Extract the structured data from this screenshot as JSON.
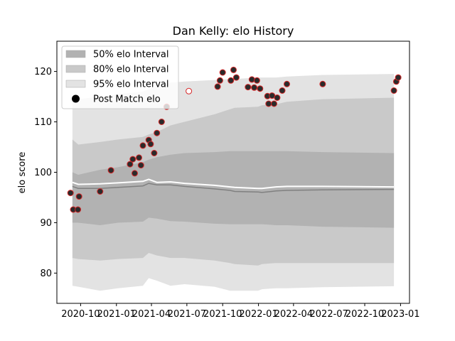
{
  "chart_data": {
    "type": "line",
    "title": "Dan Kelly: elo History",
    "xlabel": "",
    "ylabel": "elo score",
    "xlim": [
      "2020-08-01",
      "2023-01-24"
    ],
    "ylim": [
      74,
      126
    ],
    "x_ticks": [
      {
        "date": "2020-10-01",
        "label": "2020-10"
      },
      {
        "date": "2021-01-01",
        "label": "2021-01"
      },
      {
        "date": "2021-04-01",
        "label": "2021-04"
      },
      {
        "date": "2021-07-01",
        "label": "2021-07"
      },
      {
        "date": "2021-10-01",
        "label": "2021-10"
      },
      {
        "date": "2022-01-01",
        "label": "2022-01"
      },
      {
        "date": "2022-04-01",
        "label": "2022-04"
      },
      {
        "date": "2022-07-01",
        "label": "2022-07"
      },
      {
        "date": "2022-10-01",
        "label": "2022-10"
      },
      {
        "date": "2023-01-01",
        "label": "2023-01"
      }
    ],
    "y_ticks": [
      80,
      90,
      100,
      110,
      120
    ],
    "legend": {
      "placement": "upper left",
      "entries": [
        {
          "label": "50% elo Interval",
          "kind": "band",
          "color": "#b2b2b2"
        },
        {
          "label": "80% elo Interval",
          "kind": "band",
          "color": "#c9c9c9"
        },
        {
          "label": "95% elo Interval",
          "kind": "band",
          "color": "#e3e3e3"
        },
        {
          "label": "Post Match elo",
          "kind": "marker",
          "color": "#000000"
        }
      ]
    },
    "band_dates": [
      "2020-09-10",
      "2020-09-25",
      "2020-11-20",
      "2021-01-05",
      "2021-03-10",
      "2021-03-25",
      "2021-04-15",
      "2021-05-20",
      "2021-06-25",
      "2021-09-10",
      "2021-10-20",
      "2021-11-01",
      "2021-12-31",
      "2022-01-10",
      "2022-02-15",
      "2022-03-15",
      "2022-06-15",
      "2022-12-15"
    ],
    "intervals": {
      "p95": {
        "upper": [
          114,
          114.5,
          115,
          115.5,
          116,
          116.5,
          117,
          117.8,
          118,
          118.3,
          118.5,
          118.5,
          118.8,
          118.8,
          118.8,
          119,
          119.3,
          119.5
        ],
        "lower": [
          77.5,
          77.3,
          76.5,
          77,
          77.5,
          79,
          78.5,
          77.5,
          77.8,
          77.3,
          76.5,
          76.5,
          76.5,
          76.8,
          77,
          77,
          77.2,
          77.4
        ]
      },
      "p80": {
        "upper": [
          106.5,
          105.5,
          106,
          106.5,
          107,
          107.5,
          108,
          109.3,
          110,
          111.5,
          112.5,
          112.8,
          113,
          113.3,
          113.5,
          114,
          114.5,
          114.8
        ],
        "lower": [
          83,
          82.8,
          82.5,
          82.8,
          83,
          84,
          83.5,
          83,
          83,
          82.5,
          82,
          81.8,
          81.5,
          81.8,
          82,
          82,
          82,
          82
        ]
      },
      "p50": {
        "upper": [
          100,
          99.5,
          100.5,
          101,
          102,
          102.5,
          103,
          103.5,
          103.8,
          104,
          104.2,
          104.2,
          104.2,
          104.2,
          104.2,
          104.2,
          104,
          103.8
        ],
        "lower": [
          90,
          90,
          89.5,
          90,
          90.2,
          91,
          90.8,
          90.3,
          90.2,
          89.8,
          89.7,
          89.7,
          89.7,
          89.7,
          89.5,
          89.5,
          89.2,
          89
        ]
      }
    },
    "series": [
      {
        "kind": "median",
        "values": [
          97.2,
          96.8,
          96.8,
          97,
          97.3,
          97.8,
          97.5,
          97.5,
          97.2,
          96.7,
          96.4,
          96.2,
          96.1,
          96,
          96.3,
          96.4,
          96.5,
          96.6
        ]
      },
      {
        "kind": "mean",
        "values": [
          98,
          97.6,
          97.7,
          97.9,
          98.2,
          98.6,
          98,
          98.1,
          97.8,
          97.4,
          97.1,
          97,
          96.8,
          96.8,
          97.1,
          97.2,
          97.2,
          97.1
        ]
      },
      {
        "name": "Post Match elo",
        "kind": "points",
        "points": [
          {
            "date": "2020-09-05",
            "value": 95.9
          },
          {
            "date": "2020-09-12",
            "value": 92.6
          },
          {
            "date": "2020-09-24",
            "value": 92.6
          },
          {
            "date": "2020-09-27",
            "value": 95.2
          },
          {
            "date": "2020-11-20",
            "value": 96.2
          },
          {
            "date": "2020-12-18",
            "value": 100.4
          },
          {
            "date": "2021-02-05",
            "value": 101.6
          },
          {
            "date": "2021-02-12",
            "value": 102.6
          },
          {
            "date": "2021-02-17",
            "value": 99.8
          },
          {
            "date": "2021-02-28",
            "value": 102.9
          },
          {
            "date": "2021-03-05",
            "value": 101.4
          },
          {
            "date": "2021-03-10",
            "value": 105.3
          },
          {
            "date": "2021-03-25",
            "value": 106.4
          },
          {
            "date": "2021-03-30",
            "value": 105.6
          },
          {
            "date": "2021-04-08",
            "value": 103.8
          },
          {
            "date": "2021-04-15",
            "value": 107.8
          },
          {
            "date": "2021-04-27",
            "value": 110.0
          },
          {
            "date": "2021-05-10",
            "value": 113.0
          },
          {
            "date": "2021-07-06",
            "value": 116.1,
            "hollow": true
          },
          {
            "date": "2021-09-18",
            "value": 117.0
          },
          {
            "date": "2021-09-24",
            "value": 118.2
          },
          {
            "date": "2021-10-01",
            "value": 119.8
          },
          {
            "date": "2021-10-22",
            "value": 118.2
          },
          {
            "date": "2021-10-29",
            "value": 120.3
          },
          {
            "date": "2021-11-05",
            "value": 118.8
          },
          {
            "date": "2021-12-05",
            "value": 116.9
          },
          {
            "date": "2021-12-15",
            "value": 118.4
          },
          {
            "date": "2021-12-21",
            "value": 116.8
          },
          {
            "date": "2021-12-28",
            "value": 118.2
          },
          {
            "date": "2022-01-05",
            "value": 116.6
          },
          {
            "date": "2022-01-24",
            "value": 115.1
          },
          {
            "date": "2022-01-27",
            "value": 113.6
          },
          {
            "date": "2022-02-05",
            "value": 115.2
          },
          {
            "date": "2022-02-10",
            "value": 113.6
          },
          {
            "date": "2022-02-18",
            "value": 114.8
          },
          {
            "date": "2022-03-03",
            "value": 116.2
          },
          {
            "date": "2022-03-15",
            "value": 117.5
          },
          {
            "date": "2022-06-15",
            "value": 117.5
          },
          {
            "date": "2022-12-15",
            "value": 116.2
          },
          {
            "date": "2022-12-21",
            "value": 118.0
          },
          {
            "date": "2022-12-26",
            "value": 118.8
          }
        ]
      }
    ],
    "colors": {
      "point_fill": "#2b2b2b",
      "point_edge": "#d62728",
      "mean_line": "#ffffff",
      "median_line": "#808080",
      "axes": "#000000"
    }
  }
}
